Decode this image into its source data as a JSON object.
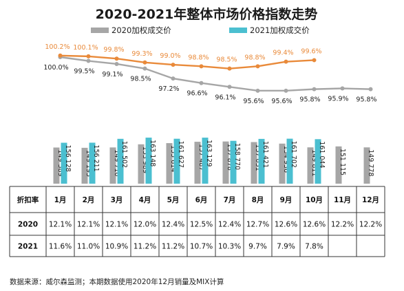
{
  "chart_data": {
    "type": "bar",
    "title": "2020-2021年整体市场价格指数走势",
    "categories": [
      "1月",
      "2月",
      "3月",
      "4月",
      "5月",
      "6月",
      "7月",
      "8月",
      "9月",
      "10月",
      "11月",
      "12月"
    ],
    "series": [
      {
        "name": "2020加权成交价",
        "kind": "bar",
        "values": [
          149589,
          149195,
          149710,
          153989,
          155614,
          157487,
          157878,
          157051,
          154936,
          149811,
          151115,
          149778
        ],
        "labels": [
          "149 589",
          "149 195",
          "149 710",
          "153 989",
          "155 614",
          "157 487",
          "157 878",
          "157 051",
          "154 936",
          "149 811",
          "151 115",
          "149 778"
        ]
      },
      {
        "name": "2021加权成交价",
        "kind": "bar",
        "values": [
          156128,
          156211,
          161502,
          163148,
          161627,
          163129,
          158770,
          161421,
          161702,
          161044,
          null,
          null
        ],
        "labels": [
          "156 128",
          "156 211",
          "161 502",
          "163 148",
          "161 627",
          "163 129",
          "158 770",
          "161 421",
          "161 702",
          "161 044",
          "",
          ""
        ]
      },
      {
        "kind": "line",
        "color": "#a6a6a6",
        "values": [
          100.0,
          99.5,
          99.1,
          98.5,
          97.2,
          96.6,
          96.1,
          95.6,
          95.6,
          95.8,
          95.9,
          95.8
        ],
        "labels": [
          "100.0%",
          "99.5%",
          "99.1%",
          "98.5%",
          "97.2%",
          "96.6%",
          "96.1%",
          "95.6%",
          "95.6%",
          "95.8%",
          "95.9%",
          "95.8%"
        ]
      },
      {
        "kind": "line",
        "color": "#e98a3a",
        "values": [
          100.2,
          100.1,
          99.8,
          99.3,
          99.0,
          98.8,
          98.5,
          98.8,
          99.4,
          99.6,
          null,
          null
        ],
        "labels": [
          "100.2%",
          "100.1%",
          "99.8%",
          "99.3%",
          "99.0%",
          "98.8%",
          "98.5%",
          "98.8%",
          "99.4%",
          "99.6%",
          "",
          ""
        ]
      }
    ],
    "legend_position": "top",
    "colors": {
      "bar_2020": "#a6a6a6",
      "bar_2021": "#4bbfd0",
      "line_2020": "#a6a6a6",
      "line_2021": "#e98a3a"
    }
  },
  "table": {
    "corner": "折扣率",
    "rows": [
      {
        "label": "2020",
        "values": [
          "12.1%",
          "12.1%",
          "12.1%",
          "12.0%",
          "12.4%",
          "12.5%",
          "12.4%",
          "12.7%",
          "12.6%",
          "12.6%",
          "12.2%",
          "12.2%"
        ]
      },
      {
        "label": "2021",
        "values": [
          "11.6%",
          "11.0%",
          "10.9%",
          "11.2%",
          "11.2%",
          "10.7%",
          "10.3%",
          "9.7%",
          "7.9%",
          "7.8%",
          "",
          ""
        ]
      }
    ]
  },
  "source": "数据来源：威尔森监测；本期数据使用2020年12月销量及MIX计算"
}
